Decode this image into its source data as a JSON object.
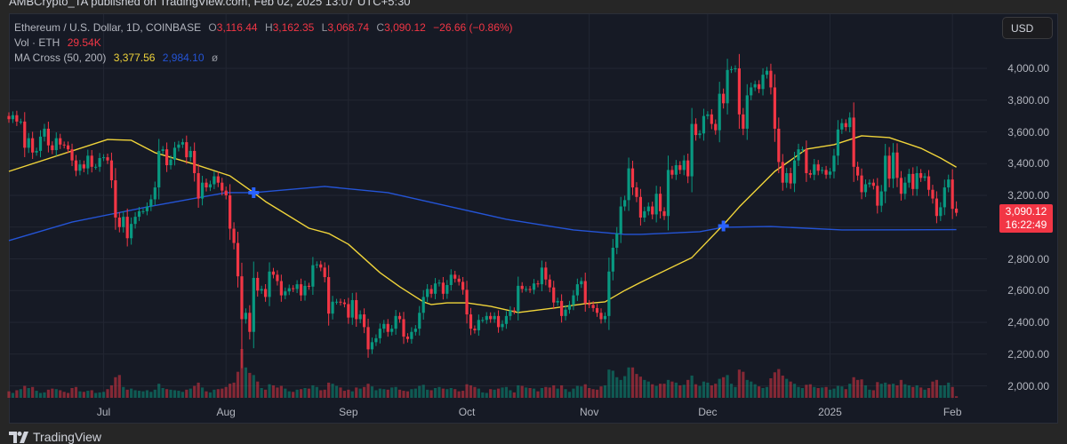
{
  "publisher_line": "AMBCrypto_TA published on TradingView.com, Feb 02, 2025 13:07 UTC+5:30",
  "legend": {
    "symbol": "Ethereum / U.S. Dollar, 1D, COINBASE",
    "o_label": "O",
    "o": "3,116.44",
    "h_label": "H",
    "h": "3,162.35",
    "l_label": "L",
    "l": "3,068.74",
    "c_label": "C",
    "c": "3,090.12",
    "change": "−26.66 (−0.86%)",
    "vol_label": "Vol · ETH",
    "vol": "29.54K",
    "ma_label": "MA Cross (50, 200)",
    "ma50": "3,377.56",
    "ma200": "2,984.10",
    "ma_extra": "ø"
  },
  "currency_button": "USD",
  "last_price": {
    "price": "3,090.12",
    "countdown": "16:22:49"
  },
  "branding": "TradingView",
  "colors": {
    "up": "#089981",
    "down": "#f23645",
    "ma50": "#f0d43a",
    "ma200": "#2454d6",
    "cross": "#2962ff",
    "background": "#161a25",
    "grid": "#222632"
  },
  "chart_data": {
    "type": "candlestick",
    "title": "Ethereum / U.S. Dollar, 1D, COINBASE",
    "start_date": "2024-06-07",
    "end_date": "2025-02-02",
    "ylim": [
      1950,
      4150
    ],
    "y_ticks": [
      "4,000.00",
      "3,800.00",
      "3,600.00",
      "3,400.00",
      "3,200.00",
      "3,000.00",
      "2,800.00",
      "2,600.00",
      "2,400.00",
      "2,200.00",
      "2,000.00"
    ],
    "y_tick_values": [
      4000,
      3800,
      3600,
      3400,
      3200,
      3000,
      2800,
      2600,
      2400,
      2200,
      2000
    ],
    "x_ticks": [
      {
        "label": "Jul",
        "day_index": 24
      },
      {
        "label": "Aug",
        "day_index": 55
      },
      {
        "label": "Sep",
        "day_index": 86
      },
      {
        "label": "Oct",
        "day_index": 116
      },
      {
        "label": "Nov",
        "day_index": 147
      },
      {
        "label": "Dec",
        "day_index": 177
      },
      {
        "label": "2025",
        "day_index": 208
      },
      {
        "label": "Feb",
        "day_index": 239
      }
    ],
    "first_open": 3700,
    "closes": [
      3680,
      3705,
      3665,
      3665,
      3500,
      3560,
      3470,
      3480,
      3570,
      3620,
      3515,
      3485,
      3560,
      3520,
      3515,
      3490,
      3420,
      3355,
      3395,
      3370,
      3450,
      3380,
      3380,
      3435,
      3440,
      3420,
      3295,
      3060,
      3000,
      3065,
      2930,
      3020,
      3065,
      3100,
      3100,
      3130,
      3175,
      3250,
      3480,
      3490,
      3390,
      3425,
      3500,
      3520,
      3535,
      3440,
      3480,
      3340,
      3180,
      3280,
      3250,
      3270,
      3320,
      3280,
      3230,
      3200,
      2990,
      2900,
      2690,
      2420,
      2460,
      2340,
      2680,
      2600,
      2610,
      2560,
      2720,
      2700,
      2660,
      2570,
      2595,
      2615,
      2610,
      2640,
      2570,
      2630,
      2625,
      2760,
      2765,
      2745,
      2685,
      2455,
      2530,
      2530,
      2525,
      2515,
      2430,
      2540,
      2420,
      2450,
      2370,
      2230,
      2275,
      2300,
      2360,
      2390,
      2340,
      2360,
      2440,
      2420,
      2310,
      2295,
      2340,
      2360,
      2460,
      2560,
      2610,
      2580,
      2645,
      2650,
      2580,
      2635,
      2700,
      2675,
      2655,
      2605,
      2450,
      2360,
      2350,
      2415,
      2415,
      2440,
      2420,
      2440,
      2370,
      2390,
      2440,
      2475,
      2470,
      2630,
      2610,
      2610,
      2605,
      2645,
      2640,
      2745,
      2670,
      2620,
      2525,
      2535,
      2440,
      2480,
      2510,
      2570,
      2640,
      2660,
      2520,
      2510,
      2490,
      2460,
      2420,
      2440,
      2720,
      2870,
      2960,
      3130,
      3170,
      3370,
      3250,
      3190,
      3060,
      3100,
      3130,
      3080,
      3210,
      3100,
      3070,
      3360,
      3330,
      3390,
      3360,
      3420,
      3320,
      3650,
      3580,
      3590,
      3700,
      3710,
      3650,
      3610,
      3840,
      3780,
      3990,
      3995,
      4000,
      3710,
      3620,
      3830,
      3880,
      3900,
      3870,
      3960,
      3985,
      3880,
      3620,
      3410,
      3280,
      3340,
      3275,
      3420,
      3490,
      3490,
      3340,
      3330,
      3395,
      3355,
      3360,
      3330,
      3350,
      3450,
      3615,
      3655,
      3630,
      3690,
      3380,
      3325,
      3220,
      3270,
      3280,
      3260,
      3135,
      3225,
      3450,
      3305,
      3470,
      3310,
      3210,
      3280,
      3335,
      3240,
      3340,
      3310,
      3320,
      3235,
      3180,
      3070,
      3125,
      3250,
      3300,
      3115,
      3090.12
    ],
    "ohlc_overrides": [
      {
        "day_index": 59,
        "low": 2111
      },
      {
        "day_index": 240,
        "open": 3116.44,
        "high": 3162.35,
        "low": 3068.74,
        "close": 3090.12
      }
    ],
    "volume_k": [
      120,
      90,
      140,
      160,
      220,
      180,
      200,
      130,
      90,
      100,
      150,
      170,
      160,
      140,
      110,
      90,
      180,
      200,
      120,
      110,
      130,
      140,
      90,
      100,
      110,
      160,
      230,
      380,
      420,
      200,
      150,
      170,
      140,
      130,
      120,
      140,
      110,
      150,
      260,
      180,
      160,
      150,
      140,
      130,
      110,
      150,
      170,
      220,
      280,
      190,
      120,
      100,
      150,
      160,
      170,
      200,
      260,
      280,
      480,
      900,
      560,
      460,
      420,
      300,
      180,
      150,
      250,
      230,
      190,
      220,
      170,
      120,
      110,
      150,
      160,
      180,
      170,
      230,
      200,
      140,
      150,
      280,
      260,
      220,
      190,
      130,
      150,
      120,
      190,
      170,
      200,
      260,
      210,
      140,
      170,
      160,
      150,
      190,
      200,
      150,
      130,
      120,
      160,
      170,
      220,
      240,
      150,
      140,
      180,
      200,
      170,
      160,
      180,
      160,
      120,
      130,
      250,
      230,
      200,
      170,
      100,
      90,
      160,
      150,
      170,
      190,
      200,
      140,
      100,
      230,
      220,
      190,
      180,
      170,
      120,
      180,
      200,
      190,
      230,
      170,
      230,
      160,
      110,
      170,
      220,
      210,
      250,
      180,
      160,
      150,
      210,
      230,
      520,
      500,
      380,
      330,
      400,
      560,
      560,
      440,
      390,
      330,
      300,
      250,
      220,
      260,
      260,
      330,
      300,
      280,
      230,
      240,
      330,
      410,
      250,
      220,
      300,
      280,
      230,
      260,
      350,
      380,
      420,
      260,
      200,
      520,
      480,
      330,
      300,
      250,
      210,
      180,
      200,
      360,
      470,
      530,
      410,
      350,
      300,
      260,
      200,
      180,
      240,
      250,
      200,
      180,
      190,
      200,
      150,
      170,
      220,
      210,
      160,
      260,
      380,
      330,
      340,
      230,
      150,
      140,
      290,
      260,
      280,
      250,
      260,
      230,
      330,
      250,
      230,
      200,
      230,
      190,
      150,
      180,
      300,
      330,
      230,
      230,
      280,
      200,
      29.54
    ],
    "ma50": [
      [
        0,
        3351
      ],
      [
        25,
        3552
      ],
      [
        31,
        3547
      ],
      [
        37,
        3469
      ],
      [
        47,
        3396
      ],
      [
        56,
        3323
      ],
      [
        62,
        3217
      ],
      [
        65,
        3161
      ],
      [
        76,
        2993
      ],
      [
        81,
        2960
      ],
      [
        86,
        2892
      ],
      [
        94,
        2713
      ],
      [
        99,
        2624
      ],
      [
        105,
        2529
      ],
      [
        107,
        2512
      ],
      [
        111,
        2523
      ],
      [
        116,
        2523
      ],
      [
        122,
        2501
      ],
      [
        129,
        2462
      ],
      [
        138,
        2490
      ],
      [
        146,
        2518
      ],
      [
        151,
        2529
      ],
      [
        156,
        2601
      ],
      [
        160,
        2652
      ],
      [
        173,
        2808
      ],
      [
        181,
        3015
      ],
      [
        185,
        3127
      ],
      [
        194,
        3351
      ],
      [
        202,
        3491
      ],
      [
        209,
        3519
      ],
      [
        216,
        3575
      ],
      [
        223,
        3564
      ],
      [
        231,
        3497
      ],
      [
        236,
        3435
      ],
      [
        240,
        3377.56
      ]
    ],
    "ma200": [
      [
        0,
        2915
      ],
      [
        16,
        3032
      ],
      [
        35,
        3127
      ],
      [
        55,
        3217
      ],
      [
        62,
        3217
      ],
      [
        80,
        3256
      ],
      [
        96,
        3217
      ],
      [
        111,
        3133
      ],
      [
        126,
        3049
      ],
      [
        143,
        2982
      ],
      [
        156,
        2954
      ],
      [
        160,
        2954
      ],
      [
        175,
        2971
      ],
      [
        181,
        2999
      ],
      [
        193,
        3004
      ],
      [
        211,
        2982
      ],
      [
        240,
        2984.1
      ]
    ],
    "crosses": [
      {
        "day_index": 62,
        "price": 3217,
        "type": "death"
      },
      {
        "day_index": 181,
        "price": 3007,
        "type": "golden"
      }
    ]
  }
}
